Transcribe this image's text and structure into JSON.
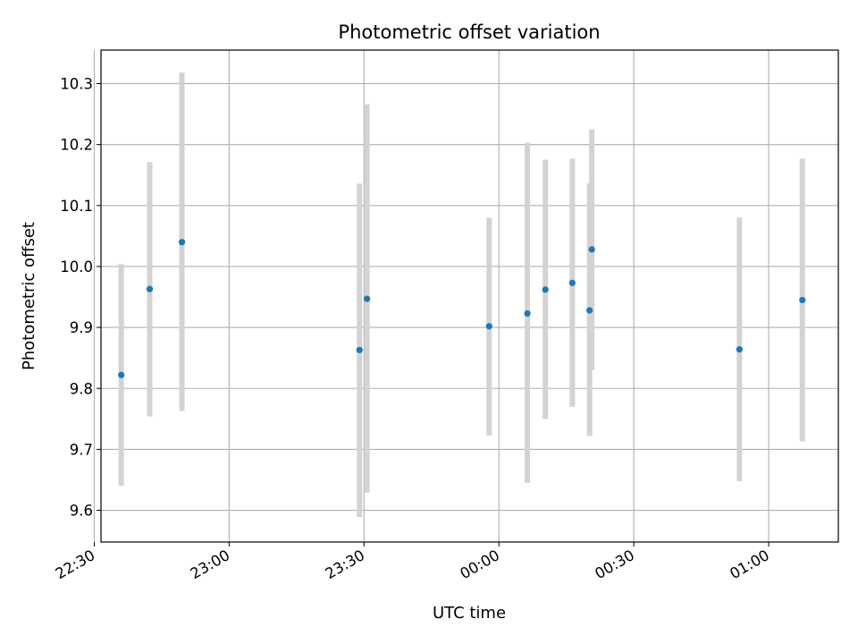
{
  "chart_data": {
    "type": "scatter",
    "title": "Photometric offset variation",
    "xlabel": "UTC time",
    "ylabel": "Photometric offset",
    "x_axis_kind": "time",
    "xlim": [
      "22:31:30",
      "01:15:30"
    ],
    "ylim": [
      9.548,
      10.355
    ],
    "x_ticks": [
      {
        "time": "22:30",
        "label": "22:30"
      },
      {
        "time": "23:00",
        "label": "23:00"
      },
      {
        "time": "23:30",
        "label": "23:30"
      },
      {
        "time": "00:00",
        "label": "00:00"
      },
      {
        "time": "00:30",
        "label": "00:30"
      },
      {
        "time": "01:00",
        "label": "01:00"
      }
    ],
    "y_ticks": [
      9.6,
      9.7,
      9.8,
      9.9,
      10.0,
      10.1,
      10.2,
      10.3
    ],
    "y_tick_labels": [
      "9.6",
      "9.7",
      "9.8",
      "9.9",
      "10.0",
      "10.1",
      "10.2",
      "10.3"
    ],
    "grid": true,
    "marker_color": "#1f77b4",
    "errorbar_color": "#d3d3d3",
    "points": [
      {
        "time": "22:36:00",
        "y": 9.822,
        "ylow": 9.64,
        "yhigh": 10.004
      },
      {
        "time": "22:42:20",
        "y": 9.963,
        "ylow": 9.754,
        "yhigh": 10.171
      },
      {
        "time": "22:49:30",
        "y": 10.04,
        "ylow": 9.763,
        "yhigh": 10.318
      },
      {
        "time": "23:29:00",
        "y": 9.863,
        "ylow": 9.589,
        "yhigh": 10.136
      },
      {
        "time": "23:30:40",
        "y": 9.947,
        "ylow": 9.629,
        "yhigh": 10.266
      },
      {
        "time": "23:57:50",
        "y": 9.902,
        "ylow": 9.723,
        "yhigh": 10.08
      },
      {
        "time": "00:06:20",
        "y": 9.923,
        "ylow": 9.645,
        "yhigh": 10.203
      },
      {
        "time": "00:10:20",
        "y": 9.962,
        "ylow": 9.75,
        "yhigh": 10.175
      },
      {
        "time": "00:16:20",
        "y": 9.973,
        "ylow": 9.77,
        "yhigh": 10.177
      },
      {
        "time": "00:20:10",
        "y": 9.928,
        "ylow": 9.722,
        "yhigh": 10.136
      },
      {
        "time": "00:20:40",
        "y": 10.028,
        "ylow": 9.83,
        "yhigh": 10.225
      },
      {
        "time": "00:53:30",
        "y": 9.864,
        "ylow": 9.648,
        "yhigh": 10.08
      },
      {
        "time": "01:07:30",
        "y": 9.945,
        "ylow": 9.713,
        "yhigh": 10.177
      }
    ]
  }
}
